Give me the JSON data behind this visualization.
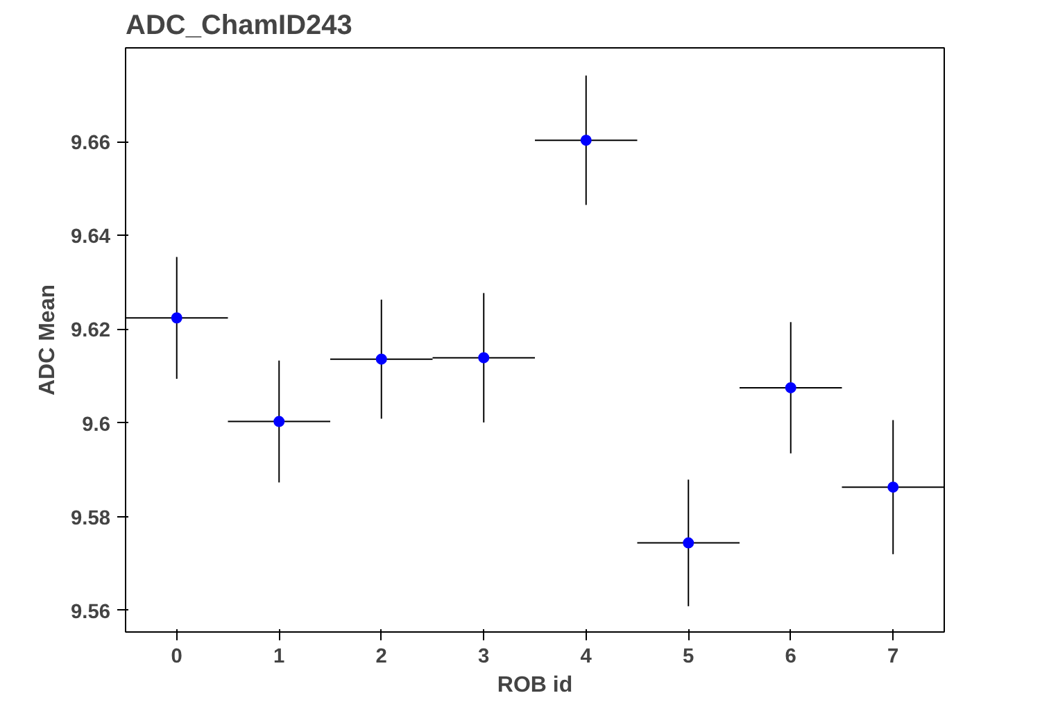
{
  "chart_data": {
    "type": "scatter",
    "title": "ADC_ChamID243",
    "xlabel": "ROB id",
    "ylabel": "ADC Mean",
    "x": [
      0,
      1,
      2,
      3,
      4,
      5,
      6,
      7
    ],
    "series": [
      {
        "color": "#0000ff",
        "values": [
          9.6224,
          9.6003,
          9.6136,
          9.6139,
          9.6603,
          9.5744,
          9.6075,
          9.5863
        ],
        "errors": [
          0.013,
          0.013,
          0.0127,
          0.0138,
          0.0138,
          0.0135,
          0.014,
          0.0143
        ],
        "xerrors": [
          0.5,
          0.5,
          0.5,
          0.5,
          0.5,
          0.5,
          0.5,
          0.5
        ]
      }
    ],
    "marker": "circle",
    "grid": false,
    "xlim": [
      -0.5,
      7.5
    ],
    "xticks": [
      0,
      1,
      2,
      3,
      4,
      5,
      6,
      7
    ],
    "ylim": [
      9.5554,
      9.68
    ],
    "yticks": [
      9.56,
      9.58,
      {
        "value": 9.6,
        "label": "9.6"
      },
      9.62,
      9.64,
      9.66
    ]
  }
}
